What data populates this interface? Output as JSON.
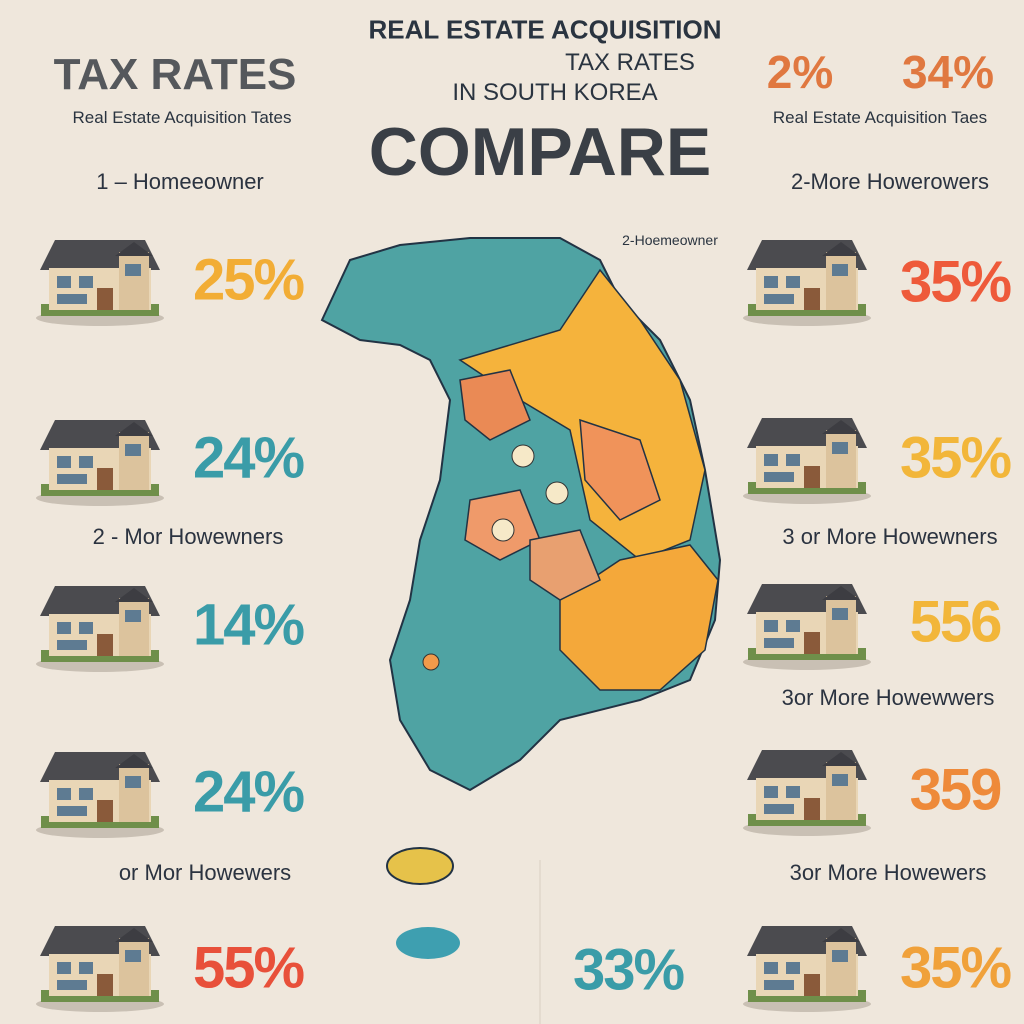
{
  "header": {
    "line1": "REAL ESTATE ACQUISITION",
    "line2": "TAX RATES",
    "line3": "IN SOUTH KOREA",
    "compare": "COMPARE"
  },
  "left_panel": {
    "title": "TAX RATES",
    "subtitle": "Real Estate Acquisition Tates",
    "groups": [
      "1 – Homeeowner",
      "2 - Mor Howewners",
      "or Mor Howewers"
    ],
    "rates": [
      "25%",
      "24%",
      "14%",
      "24%",
      "55%"
    ]
  },
  "right_panel": {
    "headline_rates": [
      "2%",
      "34%"
    ],
    "subtitle": "Real Estate Acquisition Taes",
    "groups": [
      "2-More Howerowers",
      "3 or More Howewners",
      "3or More Howewwers",
      "3or More Howewers"
    ],
    "rates": [
      "35%",
      "35%",
      "556",
      "359",
      "35%"
    ]
  },
  "map": {
    "label": "2-Hoemeowner",
    "rate": "33%"
  }
}
